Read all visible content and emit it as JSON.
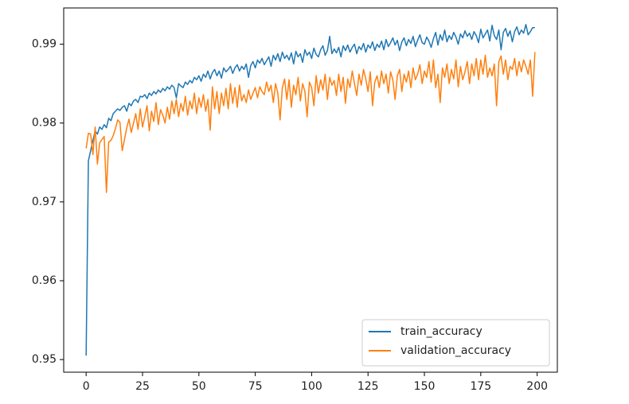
{
  "chart_data": {
    "type": "line",
    "x_range_of_index": true,
    "xlim": [
      -9.95,
      208.95
    ],
    "xticks": [
      0,
      25,
      50,
      75,
      100,
      125,
      150,
      175,
      200
    ],
    "ylim": [
      0.9484,
      0.9946
    ],
    "yticks": [
      0.95,
      0.96,
      0.97,
      0.98,
      0.99
    ],
    "legend": "lower right",
    "series": [
      {
        "name": "train_accuracy",
        "color": "#1f77b4",
        "values": [
          0.9505,
          0.9752,
          0.9765,
          0.9778,
          0.979,
          0.9786,
          0.9795,
          0.9792,
          0.9798,
          0.9794,
          0.9806,
          0.9803,
          0.9812,
          0.9815,
          0.9818,
          0.9816,
          0.982,
          0.9822,
          0.9815,
          0.9825,
          0.9822,
          0.9828,
          0.983,
          0.9826,
          0.9834,
          0.9833,
          0.9836,
          0.9831,
          0.9838,
          0.9835,
          0.984,
          0.9837,
          0.9842,
          0.9839,
          0.9844,
          0.9841,
          0.9846,
          0.9843,
          0.9848,
          0.9845,
          0.9832,
          0.985,
          0.9847,
          0.9845,
          0.9852,
          0.9849,
          0.9854,
          0.9851,
          0.9858,
          0.9855,
          0.986,
          0.9853,
          0.9862,
          0.9858,
          0.9866,
          0.9856,
          0.9864,
          0.9868,
          0.986,
          0.9866,
          0.9857,
          0.987,
          0.9865,
          0.9868,
          0.9872,
          0.9863,
          0.987,
          0.9874,
          0.9866,
          0.9872,
          0.9868,
          0.9875,
          0.9858,
          0.9873,
          0.9878,
          0.987,
          0.988,
          0.9876,
          0.9882,
          0.9874,
          0.9879,
          0.9884,
          0.9872,
          0.9886,
          0.988,
          0.9888,
          0.9878,
          0.989,
          0.9882,
          0.9886,
          0.988,
          0.9889,
          0.9875,
          0.9891,
          0.9884,
          0.9888,
          0.9877,
          0.9893,
          0.9886,
          0.989,
          0.9882,
          0.9895,
          0.9887,
          0.9884,
          0.9893,
          0.9898,
          0.9886,
          0.9892,
          0.991,
          0.9888,
          0.9894,
          0.9889,
          0.9896,
          0.9884,
          0.9898,
          0.9892,
          0.9899,
          0.989,
          0.9896,
          0.99,
          0.9888,
          0.9897,
          0.9893,
          0.9901,
          0.989,
          0.9899,
          0.9895,
          0.9903,
          0.9892,
          0.99,
          0.9896,
          0.9904,
          0.9893,
          0.9906,
          0.9897,
          0.9902,
          0.9908,
          0.9899,
          0.9905,
          0.9892,
          0.9903,
          0.9908,
          0.9898,
          0.9906,
          0.9901,
          0.991,
          0.9897,
          0.9905,
          0.9912,
          0.9902,
          0.99,
          0.9909,
          0.9904,
          0.9896,
          0.9907,
          0.9915,
          0.9899,
          0.9912,
          0.9905,
          0.9918,
          0.9903,
          0.9911,
          0.9906,
          0.9915,
          0.9909,
          0.99,
          0.9913,
          0.9908,
          0.9917,
          0.991,
          0.9914,
          0.9906,
          0.9916,
          0.9911,
          0.9902,
          0.9919,
          0.9908,
          0.9913,
          0.9918,
          0.9904,
          0.9924,
          0.9911,
          0.9906,
          0.9918,
          0.9893,
          0.9915,
          0.992,
          0.991,
          0.9917,
          0.9903,
          0.9916,
          0.9922,
          0.9912,
          0.9918,
          0.9914,
          0.9925,
          0.9912,
          0.9916,
          0.9921,
          0.9921
        ]
      },
      {
        "name": "validation_accuracy",
        "color": "#ff7f0e",
        "values": [
          0.9768,
          0.9787,
          0.9786,
          0.976,
          0.9795,
          0.9748,
          0.9775,
          0.9779,
          0.9783,
          0.9712,
          0.9776,
          0.9778,
          0.9784,
          0.9793,
          0.9804,
          0.9801,
          0.9765,
          0.9779,
          0.9794,
          0.9805,
          0.9788,
          0.98,
          0.9812,
          0.9792,
          0.9818,
          0.9795,
          0.9808,
          0.9822,
          0.979,
          0.9815,
          0.9802,
          0.9826,
          0.9798,
          0.9817,
          0.981,
          0.98,
          0.982,
          0.9805,
          0.9828,
          0.9812,
          0.983,
          0.9808,
          0.9825,
          0.9815,
          0.9834,
          0.981,
          0.9828,
          0.9818,
          0.9838,
          0.9812,
          0.9832,
          0.982,
          0.9836,
          0.9815,
          0.983,
          0.9791,
          0.9846,
          0.9818,
          0.984,
          0.9812,
          0.9838,
          0.9822,
          0.9844,
          0.9818,
          0.985,
          0.9825,
          0.9845,
          0.982,
          0.9848,
          0.9828,
          0.9836,
          0.9826,
          0.9842,
          0.983,
          0.9838,
          0.9845,
          0.9832,
          0.9846,
          0.984,
          0.9836,
          0.9852,
          0.984,
          0.9848,
          0.9826,
          0.985,
          0.9838,
          0.9804,
          0.9845,
          0.9856,
          0.983,
          0.9855,
          0.982,
          0.9848,
          0.9836,
          0.9858,
          0.9828,
          0.985,
          0.984,
          0.9808,
          0.9852,
          0.9845,
          0.9822,
          0.986,
          0.9838,
          0.9855,
          0.9842,
          0.9862,
          0.983,
          0.9858,
          0.9848,
          0.9854,
          0.9835,
          0.9862,
          0.984,
          0.9858,
          0.9825,
          0.9856,
          0.9845,
          0.9866,
          0.985,
          0.9835,
          0.9862,
          0.9848,
          0.9868,
          0.9856,
          0.984,
          0.9865,
          0.9822,
          0.9852,
          0.986,
          0.9845,
          0.9866,
          0.985,
          0.9862,
          0.9838,
          0.9865,
          0.9855,
          0.983,
          0.986,
          0.9868,
          0.984,
          0.9862,
          0.9852,
          0.9866,
          0.9845,
          0.987,
          0.9855,
          0.9862,
          0.9874,
          0.985,
          0.9866,
          0.9858,
          0.9878,
          0.9852,
          0.988,
          0.9845,
          0.9862,
          0.9826,
          0.987,
          0.9858,
          0.9875,
          0.985,
          0.9868,
          0.9856,
          0.988,
          0.9846,
          0.9872,
          0.9855,
          0.9865,
          0.9878,
          0.985,
          0.9875,
          0.986,
          0.9882,
          0.9855,
          0.988,
          0.9862,
          0.9886,
          0.9858,
          0.987,
          0.986,
          0.9875,
          0.9822,
          0.9878,
          0.9885,
          0.9862,
          0.988,
          0.9855,
          0.9872,
          0.9868,
          0.9882,
          0.986,
          0.9878,
          0.9865,
          0.988,
          0.9872,
          0.9862,
          0.988,
          0.9834,
          0.989
        ]
      }
    ]
  }
}
